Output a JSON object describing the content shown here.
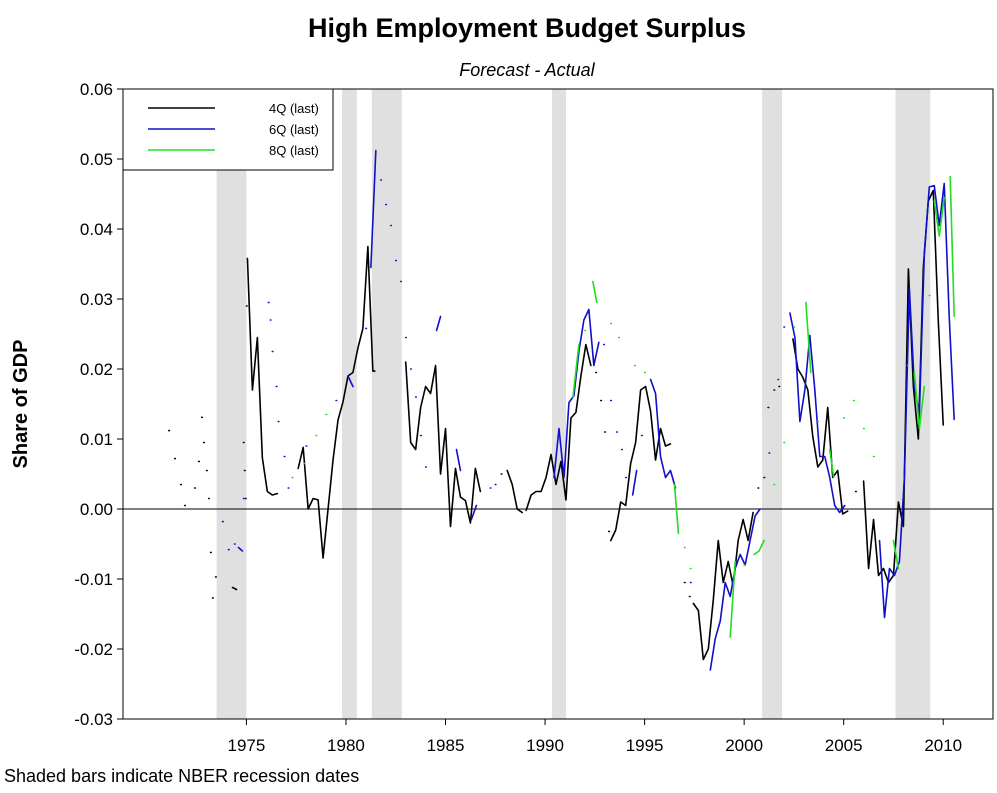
{
  "chart_data": {
    "type": "line",
    "title": "High Employment Budget Surplus",
    "subtitle": "Forecast - Actual",
    "y_label": "Share of GDP",
    "annotation": "Shaded bars indicate NBER recession dates",
    "xlim": [
      1968.8,
      2012.5
    ],
    "ylim": [
      -0.03,
      0.06
    ],
    "xticks": [
      1975,
      1980,
      1985,
      1990,
      1995,
      2000,
      2005,
      2010
    ],
    "yticks": [
      -0.03,
      -0.02,
      -0.01,
      {
        "value": 0,
        "label": "0.00"
      },
      0.01,
      0.02,
      0.03,
      0.04,
      0.05,
      0.06
    ],
    "legend": "top-left",
    "recessions": [
      [
        1973.5,
        1975.0
      ],
      [
        1979.8,
        1980.55
      ],
      [
        1981.3,
        1982.8
      ],
      [
        1990.35,
        1991.05
      ],
      [
        2000.9,
        2001.9
      ],
      [
        2007.6,
        2009.35
      ]
    ],
    "recession_color": "#e0e0e0",
    "series": [
      {
        "name": "4Q (last)",
        "color": "#000000",
        "x": [
          1971.1,
          null,
          1971.4,
          null,
          1971.7,
          null,
          1971.9,
          null,
          1972.4,
          null,
          1972.6,
          null,
          1972.75,
          null,
          1972.85,
          null,
          1973.0,
          null,
          1973.1,
          null,
          1973.2,
          null,
          1973.3,
          null,
          1973.45,
          null,
          1974.3,
          1974.5,
          null,
          1974.85,
          null,
          1974.9,
          null,
          1974.95,
          null,
          1975.0,
          null,
          1975.05,
          1975.3,
          1975.55,
          1975.8,
          1976.05,
          1976.3,
          1976.55,
          null,
          1977.6,
          1977.85,
          1978.1,
          1978.35,
          1978.6,
          1978.85,
          1979.1,
          1979.35,
          1979.6,
          1979.85,
          1980.1,
          1980.35,
          1980.6,
          1980.85,
          1981.1,
          1981.35,
          1981.45,
          null,
          1983.0,
          1983.25,
          1983.5,
          1983.75,
          1984.0,
          1984.25,
          1984.5,
          1984.75,
          1985.0,
          1985.25,
          1985.5,
          1985.75,
          1986.0,
          1986.25,
          1986.5,
          1986.75,
          null,
          1987.8,
          null,
          1988.1,
          1988.35,
          1988.6,
          1988.85,
          null,
          1989.05,
          1989.3,
          1989.55,
          1989.8,
          1990.05,
          1990.3,
          1990.55,
          1990.8,
          1991.05,
          1991.3,
          1991.55,
          1991.8,
          1992.05,
          1992.3,
          null,
          1992.55,
          null,
          1992.8,
          null,
          1993.0,
          null,
          1993.2,
          null,
          1993.3,
          1993.55,
          1993.8,
          1994.05,
          1994.3,
          1994.55,
          1994.8,
          1995.05,
          1995.3,
          1995.55,
          1995.8,
          1996.05,
          1996.3,
          null,
          1997.0,
          null,
          1997.25,
          null,
          1997.45,
          1997.7,
          1997.95,
          1998.2,
          1998.45,
          1998.7,
          1998.95,
          1999.2,
          1999.45,
          1999.7,
          1999.95,
          2000.2,
          2000.45,
          null,
          2000.7,
          null,
          2001.0,
          null,
          2001.2,
          null,
          2001.5,
          null,
          2001.75,
          null,
          2002.45,
          2002.7,
          2002.95,
          2003.2,
          2003.45,
          2003.7,
          2003.95,
          2004.2,
          2004.45,
          2004.7,
          2004.95,
          2005.2,
          null,
          2005.6,
          null,
          2006.0,
          2006.25,
          2006.5,
          2006.75,
          2007.0,
          2007.25,
          2007.5,
          2007.75,
          2008.0,
          2008.25,
          2008.5,
          2008.75,
          2009.0,
          2009.25,
          2009.5,
          2009.75,
          2010.0
        ],
        "values": [
          0.0112,
          null,
          0.0072,
          null,
          0.0035,
          null,
          0.0005,
          null,
          0.003,
          null,
          0.0068,
          null,
          0.0131,
          null,
          0.0095,
          null,
          0.0055,
          null,
          0.0015,
          null,
          -0.0062,
          null,
          -0.0127,
          null,
          -0.0097,
          null,
          -0.0112,
          -0.0115,
          null,
          0.0095,
          null,
          0.0055,
          null,
          0.0015,
          null,
          0.029,
          null,
          0.0358,
          0.017,
          0.0245,
          0.0073,
          0.0025,
          0.002,
          0.0022,
          null,
          0.0058,
          0.0088,
          0,
          0.0015,
          0.0013,
          -0.007,
          0,
          0.007,
          0.0127,
          0.0153,
          0.019,
          0.0195,
          0.023,
          0.0258,
          0.0375,
          0.0197,
          0.0197,
          null,
          0.021,
          0.0095,
          0.0085,
          0.0145,
          0.0175,
          0.0165,
          0.0205,
          0.005,
          0.0115,
          -0.0025,
          0.0058,
          0.0017,
          0.0012,
          -0.002,
          0.0058,
          0.0025,
          null,
          0.005,
          null,
          0.0055,
          0.0035,
          0,
          -0.0005,
          null,
          -0.0002,
          0.002,
          0.0025,
          0.0025,
          0.0045,
          0.0078,
          0.0035,
          0.0068,
          0.0013,
          0.013,
          0.0138,
          0.019,
          0.0235,
          0.0205,
          null,
          0.0195,
          null,
          0.0155,
          null,
          0.011,
          null,
          -0.0032,
          null,
          -0.0045,
          -0.003,
          0.001,
          0.0005,
          0.0065,
          0.0095,
          0.017,
          0.0175,
          0.014,
          0.007,
          0.0115,
          0.009,
          0.0093,
          null,
          -0.0105,
          null,
          -0.0125,
          null,
          -0.0135,
          -0.0145,
          -0.0215,
          -0.02,
          -0.013,
          -0.0045,
          -0.0105,
          -0.0075,
          -0.011,
          -0.0045,
          -0.0015,
          -0.0045,
          -0.0005,
          null,
          0.003,
          null,
          0.0045,
          null,
          0.0145,
          null,
          0.017,
          null,
          0.0175,
          null,
          0.0243,
          0.02,
          0.0188,
          0.017,
          0.0103,
          0.006,
          0.007,
          0.0145,
          0.0045,
          0.0055,
          -0.0007,
          -0.0003,
          null,
          0.0025,
          null,
          0.004,
          -0.0085,
          -0.0015,
          -0.0095,
          -0.0085,
          -0.0105,
          -0.0095,
          0.001,
          -0.0025,
          0.0343,
          0.0175,
          0.01,
          0.0345,
          0.044,
          0.0455,
          0.027,
          0.012
        ]
      },
      {
        "name": "6Q (last)",
        "color": "#1010cc",
        "x": [
          1973.8,
          null,
          1974.1,
          null,
          1974.4,
          null,
          1974.6,
          1974.8,
          null,
          1974.85,
          null,
          1976.1,
          null,
          1976.2,
          null,
          1976.3,
          null,
          1976.5,
          null,
          1976.6,
          null,
          1976.9,
          null,
          1977.1,
          null,
          1978.0,
          null,
          1979.5,
          null,
          1980.1,
          1980.35,
          null,
          1981.0,
          null,
          1981.25,
          1981.5,
          null,
          1981.75,
          null,
          1982.0,
          null,
          1982.25,
          null,
          1982.5,
          null,
          1982.75,
          null,
          1983.0,
          null,
          1983.25,
          null,
          1983.5,
          null,
          1983.75,
          null,
          1984.0,
          null,
          1984.55,
          1984.75,
          null,
          1985.55,
          1985.75,
          null,
          1986.3,
          1986.55,
          null,
          1987.25,
          null,
          1987.5,
          null,
          1990.45,
          1990.7,
          1990.95,
          1991.2,
          1991.45,
          1991.7,
          1991.95,
          1992.2,
          1992.45,
          1992.7,
          null,
          1992.95,
          null,
          1993.3,
          null,
          1993.6,
          null,
          1993.85,
          null,
          1994.05,
          null,
          1994.4,
          1994.6,
          null,
          1994.85,
          null,
          1995.3,
          1995.55,
          1995.8,
          1996.05,
          1996.3,
          1996.55,
          null,
          1997.3,
          null,
          1998.3,
          1998.55,
          1998.8,
          1999.05,
          1999.3,
          1999.55,
          1999.8,
          2000.05,
          2000.3,
          2000.55,
          2000.8,
          null,
          2001.25,
          null,
          2001.7,
          null,
          2002.0,
          null,
          2002.3,
          2002.55,
          2002.8,
          2003.05,
          2003.3,
          2003.55,
          2003.8,
          2004.05,
          2004.3,
          2004.55,
          2004.8,
          2005.05,
          null,
          2006.8,
          2007.05,
          2007.3,
          2007.55,
          2007.8,
          2008.05,
          2008.3,
          2008.55,
          2008.8,
          2009.05,
          2009.3,
          2009.55,
          2009.8,
          2010.05,
          2010.3,
          2010.55
        ],
        "values": [
          -0.0018,
          null,
          -0.0058,
          null,
          -0.005,
          null,
          -0.0055,
          -0.006,
          null,
          0.0015,
          null,
          0.0295,
          null,
          0.027,
          null,
          0.0225,
          null,
          0.0175,
          null,
          0.0125,
          null,
          0.0075,
          null,
          0.003,
          null,
          0.009,
          null,
          0.0155,
          null,
          0.019,
          0.0175,
          null,
          0.0258,
          null,
          0.0345,
          0.0512,
          null,
          0.047,
          null,
          0.0435,
          null,
          0.0405,
          null,
          0.0355,
          null,
          0.0325,
          null,
          0.0245,
          null,
          0.02,
          null,
          0.016,
          null,
          0.0105,
          null,
          0.006,
          null,
          0.0255,
          0.0275,
          null,
          0.0085,
          0.0055,
          null,
          -0.0015,
          0.0005,
          null,
          0.003,
          null,
          0.0035,
          null,
          0.0045,
          0.0115,
          0.0045,
          0.0152,
          0.0162,
          0.0225,
          0.027,
          0.0285,
          0.0205,
          0.0238,
          null,
          0.0235,
          null,
          0.0155,
          null,
          0.011,
          null,
          0.0085,
          null,
          0.0045,
          null,
          0.002,
          0.0055,
          null,
          0.0105,
          null,
          0.0185,
          0.0165,
          0.0075,
          0.0045,
          0.0055,
          0.003,
          null,
          -0.0105,
          null,
          -0.023,
          -0.0185,
          -0.016,
          -0.0105,
          -0.0125,
          -0.0085,
          -0.0065,
          -0.008,
          -0.0045,
          -0.001,
          0,
          null,
          0.008,
          null,
          0.0185,
          null,
          0.026,
          null,
          0.028,
          0.0245,
          0.0125,
          0.017,
          0.0248,
          0.017,
          0.0075,
          0.0075,
          0.0045,
          0.0005,
          -0.0005,
          0.0005,
          null,
          -0.0045,
          -0.0155,
          -0.0085,
          -0.0095,
          -0.0075,
          0.0045,
          0.0315,
          0.0175,
          0.0135,
          0.0365,
          0.046,
          0.0462,
          0.0405,
          0.0465,
          0.0275,
          0.0128
        ]
      },
      {
        "name": "8Q (last)",
        "color": "#22dd22",
        "x": [
          1977.3,
          null,
          1977.9,
          null,
          1978.5,
          null,
          1979.0,
          null,
          1991.4,
          1991.7,
          null,
          1992.0,
          null,
          1992.4,
          1992.6,
          null,
          1993.3,
          null,
          1993.7,
          null,
          1994.5,
          null,
          1995.0,
          null,
          1996.5,
          1996.7,
          null,
          1997.0,
          null,
          1997.3,
          null,
          1999.3,
          1999.55,
          null,
          2000.0,
          null,
          2000.5,
          2000.75,
          2001.0,
          null,
          2001.5,
          null,
          2002.0,
          null,
          2002.5,
          null,
          2003.1,
          2003.35,
          null,
          2003.7,
          null,
          2004.3,
          2004.5,
          null,
          2005.0,
          null,
          2005.5,
          null,
          2006.0,
          null,
          2006.5,
          null,
          2007.5,
          2007.75,
          null,
          2008.2,
          null,
          2008.55,
          2008.8,
          2009.05,
          null,
          2009.3,
          null,
          2009.55,
          2009.8,
          2010.05,
          null,
          2010.35,
          2010.55
        ],
        "values": [
          0.0045,
          null,
          0.0065,
          null,
          0.0105,
          null,
          0.0135,
          null,
          0.016,
          0.0235,
          null,
          0.0255,
          null,
          0.0325,
          0.0295,
          null,
          0.0265,
          null,
          0.0245,
          null,
          0.0205,
          null,
          0.0195,
          null,
          0.0035,
          -0.0035,
          null,
          -0.0055,
          null,
          -0.0085,
          null,
          -0.0183,
          -0.0075,
          null,
          -0.008,
          null,
          -0.0065,
          -0.006,
          -0.0045,
          null,
          0.0035,
          null,
          0.0095,
          null,
          0.026,
          null,
          0.0295,
          0.0195,
          null,
          0.0125,
          null,
          0.0085,
          0.0045,
          null,
          0.013,
          null,
          0.0155,
          null,
          0.0115,
          null,
          0.0075,
          null,
          -0.0045,
          -0.0085,
          null,
          0.0205,
          null,
          0.0195,
          0.0115,
          0.0175,
          null,
          0.0305,
          null,
          0.044,
          0.039,
          0.0445,
          null,
          0.0475,
          0.0275
        ]
      }
    ]
  }
}
